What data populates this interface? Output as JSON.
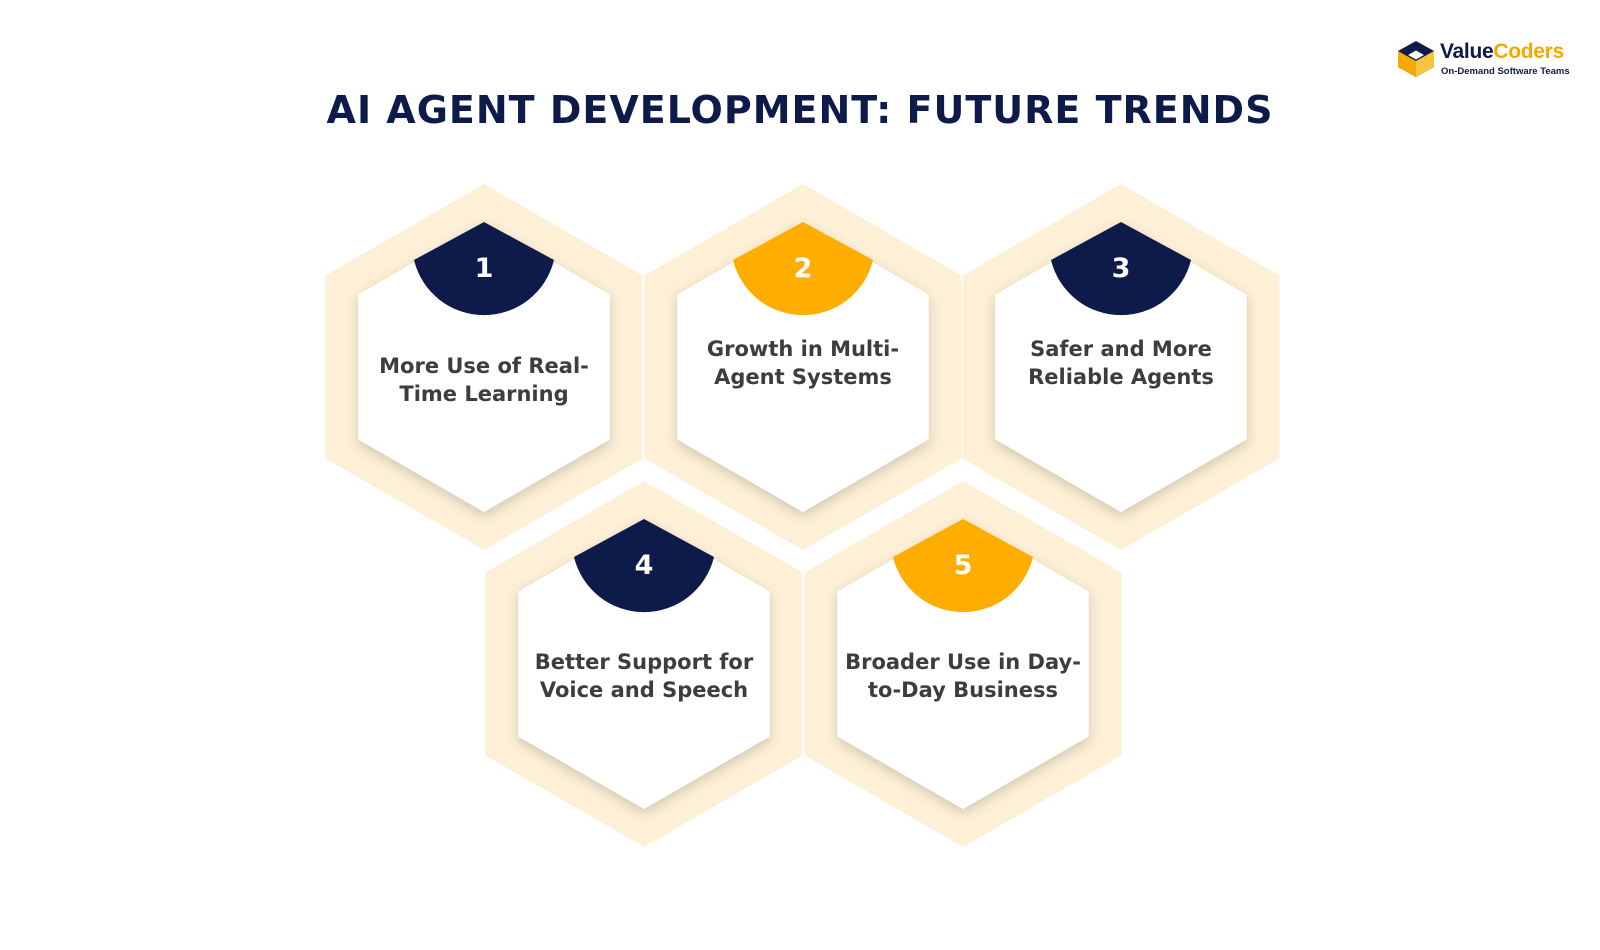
{
  "brand": {
    "name_part1": "Value",
    "name_part2": "Coders",
    "tagline": "On-Demand Software Teams",
    "logo_icon": "cube-logo-icon"
  },
  "title": "AI AGENT DEVELOPMENT: FUTURE TRENDS",
  "colors": {
    "navy": "#0e1a4a",
    "amber": "#ffae00",
    "hex_outer": "#fdf0d6",
    "hex_inner": "#ffffff",
    "label": "#3d3d3d"
  },
  "trends": [
    {
      "number": "1",
      "label": "More Use of Real-Time Learning",
      "badge_color": "navy"
    },
    {
      "number": "2",
      "label": "Growth in Multi-Agent Systems",
      "badge_color": "amber"
    },
    {
      "number": "3",
      "label": "Safer and More Reliable Agents",
      "badge_color": "navy"
    },
    {
      "number": "4",
      "label": "Better Support for Voice and Speech",
      "badge_color": "navy"
    },
    {
      "number": "5",
      "label": "Broader Use in Day-to-Day Business",
      "badge_color": "amber"
    }
  ]
}
